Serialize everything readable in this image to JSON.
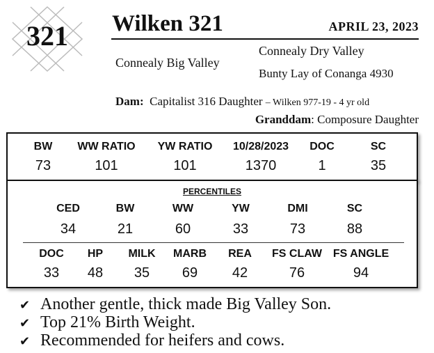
{
  "lot": {
    "number": "321"
  },
  "bull": {
    "name": "Wilken 321",
    "sale_date": "APRIL  23, 2023"
  },
  "pedigree": {
    "sire": "Connealy Big Valley",
    "sire_sire": "Connealy Dry Valley",
    "sire_dam": "Bunty Lay of Conanga 4930",
    "dam_label": "Dam",
    "dam": "Capitalist 316 Daughter",
    "dam_detail": "– Wilken 977-19 - 4 yr old",
    "granddam_label": "Granddam",
    "granddam": "Composure Daughter"
  },
  "epd_row": {
    "headers": [
      "BW",
      "WW RATIO",
      "YW RATIO",
      "10/28/2023",
      "DOC",
      "SC"
    ],
    "values": [
      "73",
      "101",
      "101",
      "1370",
      "1",
      "35"
    ]
  },
  "percentiles": {
    "title": "PERCENTILES",
    "row1": {
      "headers": [
        "CED",
        "BW",
        "WW",
        "YW",
        "DMI",
        "SC"
      ],
      "values": [
        "34",
        "21",
        "60",
        "33",
        "73",
        "88"
      ]
    },
    "row2": {
      "headers": [
        "DOC",
        "HP",
        "MILK",
        "MARB",
        "REA",
        "FS CLAW",
        "FS ANGLE"
      ],
      "values": [
        "33",
        "48",
        "35",
        "69",
        "42",
        "76",
        "94"
      ]
    }
  },
  "comments": [
    "Another gentle, thick made Big Valley Son.",
    "Top 21% Birth Weight.",
    "Recommended for heifers and cows."
  ],
  "icons": {
    "comment_bullet": "checkmark-icon",
    "check_glyph": "✔"
  },
  "colors": {
    "text": "#111111",
    "badge_lines": "#bbbbbb"
  }
}
